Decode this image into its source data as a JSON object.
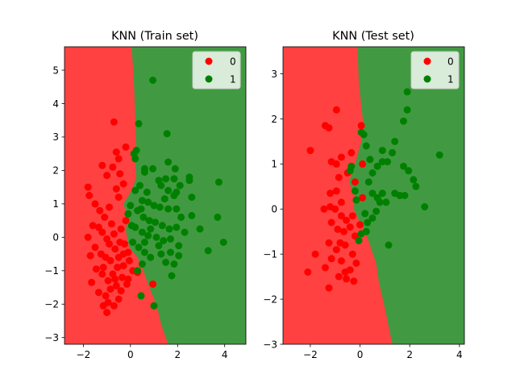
{
  "colors": {
    "region_class0": "#ff4141",
    "region_class1": "#419a41",
    "point_class0": "#ff0000",
    "point_class1": "#008000"
  },
  "chart_data": [
    {
      "type": "scatter",
      "title": "KNN (Train set)",
      "xlim": [
        -2.8,
        4.9
      ],
      "ylim": [
        -3.2,
        5.7
      ],
      "xticks": [
        -2,
        0,
        2,
        4
      ],
      "yticks": [
        -3,
        -2,
        -1,
        0,
        1,
        2,
        3,
        4,
        5
      ],
      "legend": {
        "position": "upper right",
        "entries": [
          "0",
          "1"
        ]
      },
      "boundary": [
        [
          0.05,
          5.7
        ],
        [
          0.15,
          4.6
        ],
        [
          0.2,
          3.6
        ],
        [
          0.25,
          2.6
        ],
        [
          0.2,
          2.2
        ],
        [
          0.25,
          1.8
        ],
        [
          0.05,
          1.4
        ],
        [
          -0.3,
          1.0
        ],
        [
          -0.1,
          0.6
        ],
        [
          -0.2,
          0.2
        ],
        [
          -0.05,
          -0.3
        ],
        [
          0.3,
          -0.6
        ],
        [
          0.5,
          -0.9
        ],
        [
          0.8,
          -1.5
        ],
        [
          1.1,
          -2.0
        ],
        [
          1.3,
          -2.6
        ],
        [
          1.6,
          -3.2
        ]
      ],
      "series": [
        {
          "name": "0",
          "points": [
            [
              -0.7,
              3.45
            ],
            [
              -1.8,
              1.5
            ],
            [
              -1.75,
              1.25
            ],
            [
              -1.2,
              2.15
            ],
            [
              -0.6,
              2.55
            ],
            [
              -0.5,
              2.35
            ],
            [
              -0.2,
              2.7
            ],
            [
              -0.75,
              2.1
            ],
            [
              -0.45,
              1.9
            ],
            [
              -1.0,
              1.85
            ],
            [
              -0.3,
              1.6
            ],
            [
              -0.6,
              1.45
            ],
            [
              -1.5,
              1.0
            ],
            [
              -1.3,
              0.8
            ],
            [
              -1.1,
              0.6
            ],
            [
              -0.9,
              0.9
            ],
            [
              -0.5,
              1.2
            ],
            [
              -0.8,
              0.4
            ],
            [
              -1.6,
              0.35
            ],
            [
              -1.35,
              0.3
            ],
            [
              -1.2,
              0.15
            ],
            [
              -1.0,
              -0.05
            ],
            [
              -0.7,
              0.1
            ],
            [
              -0.4,
              0.25
            ],
            [
              -1.5,
              -0.3
            ],
            [
              -1.25,
              -0.5
            ],
            [
              -1.05,
              -0.6
            ],
            [
              -0.85,
              -0.7
            ],
            [
              -0.65,
              -0.35
            ],
            [
              -0.45,
              -0.15
            ],
            [
              -1.7,
              -0.55
            ],
            [
              -1.45,
              -0.95
            ],
            [
              -1.2,
              -1.1
            ],
            [
              -0.95,
              -1.3
            ],
            [
              -0.75,
              -1.1
            ],
            [
              -0.55,
              -0.9
            ],
            [
              -0.35,
              -1.2
            ],
            [
              -0.15,
              -1.4
            ],
            [
              -1.65,
              -1.35
            ],
            [
              -1.35,
              -1.65
            ],
            [
              -1.05,
              -1.75
            ],
            [
              -0.85,
              -1.55
            ],
            [
              -0.6,
              -1.45
            ],
            [
              -0.4,
              -1.6
            ],
            [
              -1.15,
              -2.05
            ],
            [
              -0.95,
              -1.95
            ],
            [
              -0.7,
              -2.05
            ],
            [
              -0.1,
              -1.25
            ],
            [
              0.1,
              -1.0
            ],
            [
              0.3,
              -1.05
            ],
            [
              0.95,
              -1.4
            ],
            [
              -1.0,
              -2.25
            ],
            [
              -0.5,
              -1.85
            ],
            [
              -0.05,
              -0.7
            ],
            [
              -0.3,
              -0.5
            ],
            [
              -1.8,
              0.0
            ],
            [
              -0.2,
              0.5
            ],
            [
              -0.3,
              -0.85
            ],
            [
              -0.5,
              -0.6
            ],
            [
              -0.25,
              -0.2
            ],
            [
              -0.9,
              -0.2
            ],
            [
              -1.15,
              -0.9
            ],
            [
              -0.65,
              -1.25
            ],
            [
              -0.1,
              -0.45
            ]
          ]
        },
        {
          "name": "1",
          "points": [
            [
              0.95,
              4.7
            ],
            [
              0.35,
              3.4
            ],
            [
              1.55,
              3.1
            ],
            [
              0.25,
              2.6
            ],
            [
              0.15,
              2.5
            ],
            [
              0.2,
              2.35
            ],
            [
              0.6,
              2.05
            ],
            [
              0.95,
              2.05
            ],
            [
              1.6,
              2.25
            ],
            [
              1.5,
              1.75
            ],
            [
              1.85,
              1.75
            ],
            [
              2.5,
              1.8
            ],
            [
              2.5,
              1.7
            ],
            [
              3.75,
              1.65
            ],
            [
              1.3,
              1.55
            ],
            [
              1.6,
              1.4
            ],
            [
              1.95,
              1.35
            ],
            [
              1.45,
              1.15
            ],
            [
              1.85,
              1.25
            ],
            [
              2.6,
              1.2
            ],
            [
              0.2,
              1.4
            ],
            [
              0.5,
              1.1
            ],
            [
              0.75,
              1.05
            ],
            [
              1.0,
              0.95
            ],
            [
              1.25,
              0.9
            ],
            [
              1.6,
              0.85
            ],
            [
              1.95,
              0.85
            ],
            [
              2.15,
              0.6
            ],
            [
              2.6,
              0.65
            ],
            [
              3.7,
              0.6
            ],
            [
              0.3,
              0.8
            ],
            [
              0.55,
              0.6
            ],
            [
              0.8,
              0.5
            ],
            [
              1.05,
              0.45
            ],
            [
              1.35,
              0.35
            ],
            [
              1.65,
              0.25
            ],
            [
              1.95,
              0.3
            ],
            [
              2.3,
              0.15
            ],
            [
              2.95,
              0.25
            ],
            [
              0.2,
              0.3
            ],
            [
              0.5,
              0.15
            ],
            [
              0.75,
              0.05
            ],
            [
              1.1,
              0.0
            ],
            [
              1.4,
              -0.1
            ],
            [
              1.7,
              -0.05
            ],
            [
              2.05,
              -0.25
            ],
            [
              0.35,
              -0.3
            ],
            [
              0.6,
              -0.45
            ],
            [
              0.85,
              -0.6
            ],
            [
              1.3,
              -0.5
            ],
            [
              1.7,
              -0.45
            ],
            [
              2.05,
              -0.55
            ],
            [
              3.3,
              -0.4
            ],
            [
              3.95,
              -0.15
            ],
            [
              1.5,
              -0.75
            ],
            [
              1.85,
              -0.8
            ],
            [
              1.75,
              -1.15
            ],
            [
              0.5,
              -0.8
            ],
            [
              0.3,
              -1.0
            ],
            [
              0.45,
              -1.75
            ],
            [
              1.0,
              -2.05
            ],
            [
              0.6,
              1.95
            ],
            [
              1.9,
              2.05
            ],
            [
              2.1,
              1.55
            ],
            [
              0.4,
              1.55
            ],
            [
              0.7,
              1.35
            ],
            [
              1.2,
              1.7
            ],
            [
              0.85,
              0.25
            ],
            [
              0.45,
              0.85
            ],
            [
              1.2,
              -0.25
            ],
            [
              0.0,
              0.95
            ],
            [
              0.05,
              0.35
            ],
            [
              0.1,
              -0.15
            ],
            [
              -0.1,
              0.7
            ],
            [
              0.6,
              -0.15
            ]
          ]
        }
      ]
    },
    {
      "type": "scatter",
      "title": "KNN (Test set)",
      "xlim": [
        -3.1,
        4.2
      ],
      "ylim": [
        -3.0,
        3.6
      ],
      "xticks": [
        -2,
        0,
        2,
        4
      ],
      "yticks": [
        -3,
        -2,
        -1,
        0,
        1,
        2,
        3
      ],
      "legend": {
        "position": "upper right",
        "entries": [
          "0",
          "1"
        ]
      },
      "boundary": [
        [
          -0.1,
          3.6
        ],
        [
          -0.05,
          2.8
        ],
        [
          0.05,
          2.3
        ],
        [
          0.15,
          1.8
        ],
        [
          0.05,
          1.5
        ],
        [
          -0.1,
          1.2
        ],
        [
          -0.25,
          0.9
        ],
        [
          -0.45,
          0.6
        ],
        [
          -0.2,
          0.3
        ],
        [
          -0.25,
          0.0
        ],
        [
          0.0,
          -0.3
        ],
        [
          0.25,
          -0.55
        ],
        [
          0.4,
          -0.8
        ],
        [
          0.65,
          -1.2
        ],
        [
          0.75,
          -1.6
        ],
        [
          1.0,
          -2.2
        ],
        [
          1.3,
          -3.0
        ]
      ],
      "series": [
        {
          "name": "0",
          "points": [
            [
              -0.95,
              2.2
            ],
            [
              -1.4,
              1.85
            ],
            [
              -1.25,
              1.8
            ],
            [
              -2.0,
              1.3
            ],
            [
              -0.35,
              1.25
            ],
            [
              -0.75,
              1.15
            ],
            [
              -0.95,
              1.0
            ],
            [
              -1.15,
              1.05
            ],
            [
              0.1,
              1.0
            ],
            [
              -0.5,
              0.8
            ],
            [
              -0.85,
              0.7
            ],
            [
              -1.2,
              0.35
            ],
            [
              -0.95,
              0.4
            ],
            [
              -0.75,
              0.15
            ],
            [
              -1.45,
              0.0
            ],
            [
              -1.2,
              0.05
            ],
            [
              -1.0,
              0.0
            ],
            [
              -0.75,
              -0.15
            ],
            [
              -0.55,
              -0.25
            ],
            [
              -0.3,
              -0.15
            ],
            [
              -1.15,
              -0.3
            ],
            [
              -0.9,
              -0.45
            ],
            [
              -0.65,
              -0.5
            ],
            [
              -0.4,
              -0.4
            ],
            [
              -1.25,
              -0.75
            ],
            [
              -0.95,
              -0.9
            ],
            [
              -0.8,
              -0.75
            ],
            [
              -0.6,
              -0.8
            ],
            [
              -1.15,
              -1.1
            ],
            [
              -0.75,
              -1.15
            ],
            [
              -0.6,
              -1.4
            ],
            [
              -0.4,
              -1.35
            ],
            [
              -0.15,
              -1.2
            ],
            [
              -1.4,
              -1.3
            ],
            [
              -0.85,
              -1.5
            ],
            [
              -0.55,
              -1.55
            ],
            [
              -1.25,
              -1.75
            ],
            [
              -2.1,
              -1.4
            ],
            [
              -1.8,
              -1.0
            ],
            [
              -0.3,
              -1.0
            ],
            [
              -0.2,
              -0.6
            ],
            [
              0.0,
              -0.35
            ],
            [
              0.05,
              1.85
            ],
            [
              -0.25,
              -1.6
            ],
            [
              0.1,
              0.25
            ],
            [
              -0.2,
              0.6
            ]
          ]
        },
        {
          "name": "1",
          "points": [
            [
              1.9,
              2.6
            ],
            [
              1.9,
              2.2
            ],
            [
              1.75,
              1.95
            ],
            [
              0.05,
              1.7
            ],
            [
              0.15,
              1.65
            ],
            [
              0.9,
              1.3
            ],
            [
              1.3,
              1.25
            ],
            [
              0.25,
              1.4
            ],
            [
              0.9,
              1.05
            ],
            [
              1.1,
              1.05
            ],
            [
              1.4,
              1.5
            ],
            [
              0.7,
              0.95
            ],
            [
              1.75,
              0.95
            ],
            [
              1.95,
              0.85
            ],
            [
              2.15,
              0.65
            ],
            [
              2.25,
              0.5
            ],
            [
              3.2,
              1.2
            ],
            [
              -0.35,
              0.95
            ],
            [
              -0.4,
              0.85
            ],
            [
              0.5,
              0.8
            ],
            [
              0.35,
              0.6
            ],
            [
              -0.2,
              0.4
            ],
            [
              0.5,
              0.35
            ],
            [
              0.9,
              0.35
            ],
            [
              1.4,
              0.35
            ],
            [
              1.6,
              0.3
            ],
            [
              1.8,
              0.3
            ],
            [
              0.7,
              0.25
            ],
            [
              1.05,
              0.15
            ],
            [
              -0.15,
              0.2
            ],
            [
              0.65,
              -0.05
            ],
            [
              0.5,
              -0.2
            ],
            [
              0.3,
              -0.3
            ],
            [
              0.25,
              -0.5
            ],
            [
              0.05,
              -0.55
            ],
            [
              -0.05,
              -0.7
            ],
            [
              1.15,
              -0.8
            ],
            [
              2.6,
              0.05
            ],
            [
              0.4,
              1.1
            ],
            [
              0.2,
              -0.1
            ],
            [
              0.8,
              0.15
            ]
          ]
        }
      ]
    }
  ]
}
